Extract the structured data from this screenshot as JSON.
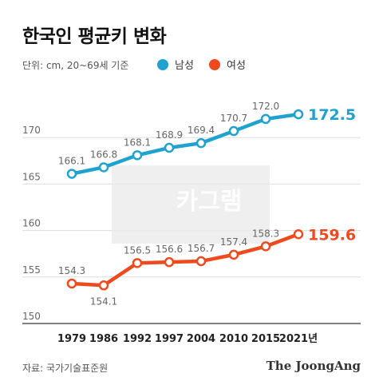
{
  "title": "한국인 평균키 변화",
  "unit_note": "단위: cm, 20~69세 기준",
  "source": "자료: 국가기술표준원",
  "brand": "The JoongAng",
  "watermark": "카그램",
  "colors": {
    "male": "#1fa2cf",
    "female": "#ee4a1e",
    "axis": "#333333",
    "grid": "#dddddd",
    "label": "#666666"
  },
  "chart_data": {
    "type": "line",
    "categories": [
      "1979",
      "1986",
      "1992",
      "1997",
      "2004",
      "2010",
      "2015",
      "2021년"
    ],
    "ylim": [
      150,
      175
    ],
    "yticks": [
      150,
      155,
      160,
      165,
      170
    ],
    "grid": true,
    "legend_position": "top-right",
    "series": [
      {
        "name": "남성",
        "color": "#1fa2cf",
        "values": [
          166.1,
          166.8,
          168.1,
          168.9,
          169.4,
          170.7,
          172.0,
          172.5
        ],
        "labels": [
          "166.1",
          "166.8",
          "168.1",
          "168.9",
          "169.4",
          "170.7",
          "172.0",
          "172.5"
        ]
      },
      {
        "name": "여성",
        "color": "#ee4a1e",
        "values": [
          154.3,
          154.1,
          156.5,
          156.6,
          156.7,
          157.4,
          158.3,
          159.6
        ],
        "labels": [
          "154.3",
          "154.1",
          "156.5",
          "156.6",
          "156.7",
          "157.4",
          "158.3",
          "159.6"
        ]
      }
    ]
  }
}
